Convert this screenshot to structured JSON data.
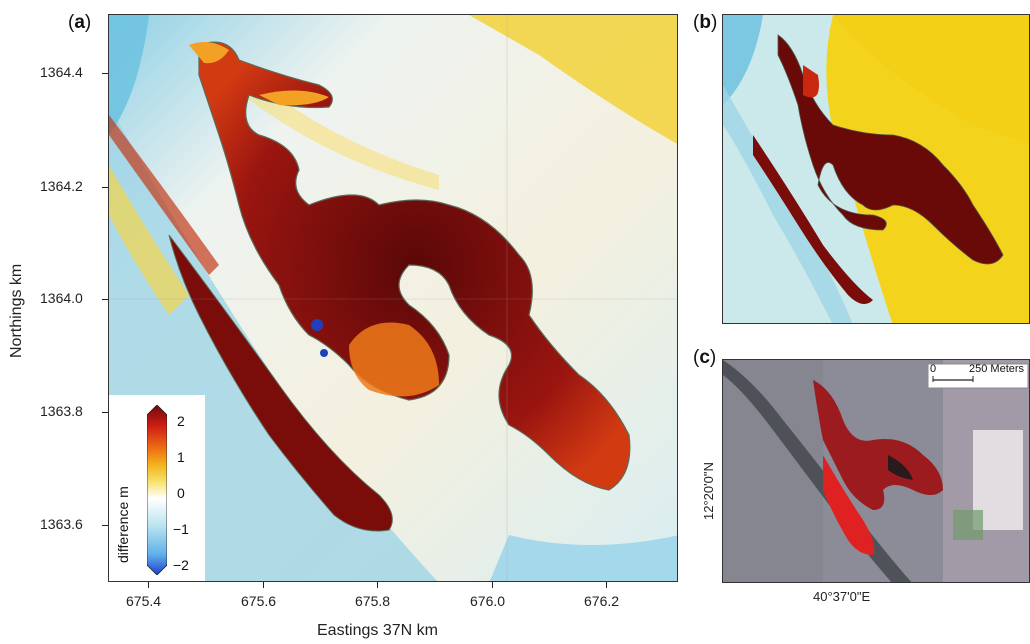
{
  "panels": {
    "a": {
      "label": "a"
    },
    "b": {
      "label": "b"
    },
    "c": {
      "label": "c"
    }
  },
  "main_map": {
    "x_axis_title": "Eastings 37N  km",
    "y_axis_title": "Northings  km",
    "x_ticks": [
      "675.4",
      "675.6",
      "675.8",
      "676.0",
      "676.2"
    ],
    "y_ticks": [
      "1364.4",
      "1364.2",
      "1364.0",
      "1363.8",
      "1363.6"
    ]
  },
  "colorbar": {
    "title": "difference  m",
    "ticks": [
      "2",
      "1",
      "0",
      "−1",
      "−2"
    ],
    "colors": [
      "#1d3fd6",
      "#5fb0e8",
      "#bfe6f2",
      "#ffffff",
      "#f5e26a",
      "#f3b21c",
      "#ee6a14",
      "#cc1c14",
      "#6e0a0a"
    ]
  },
  "inset_c": {
    "x_label": "40°37'0\"E",
    "y_label": "12°20'0\"N",
    "scalebar": {
      "start": "0",
      "end": "250 Meters"
    }
  }
}
